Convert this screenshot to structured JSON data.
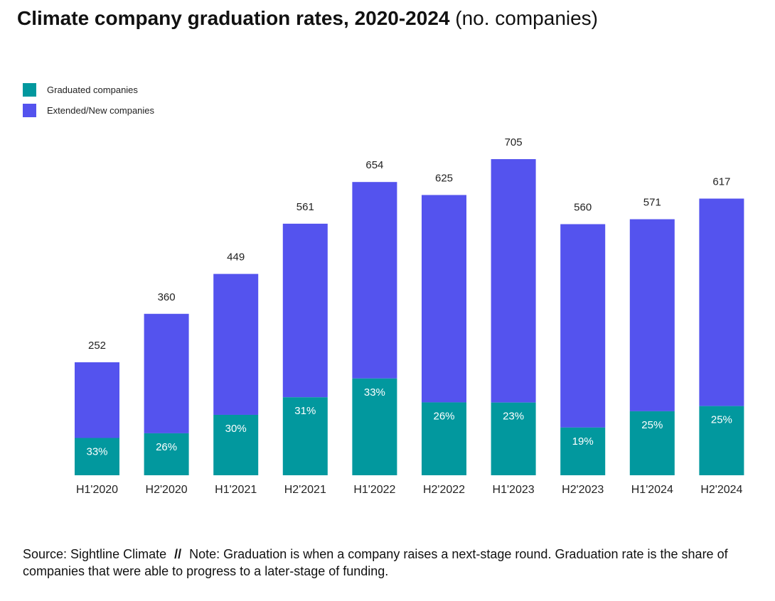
{
  "title": {
    "bold": "Climate company graduation rates, 2020-2024",
    "light": "(no. companies)"
  },
  "legend": [
    {
      "label": "Graduated companies",
      "color": "#02989E"
    },
    {
      "label": "Extended/New companies",
      "color": "#5453EE"
    }
  ],
  "chart_data": {
    "type": "bar",
    "stacked": true,
    "categories": [
      "H1'2020",
      "H2'2020",
      "H1'2021",
      "H2'2021",
      "H1'2022",
      "H2'2022",
      "H1'2023",
      "H2'2023",
      "H1'2024",
      "H2'2024"
    ],
    "totals": [
      252,
      360,
      449,
      561,
      654,
      625,
      705,
      560,
      571,
      617
    ],
    "series": [
      {
        "name": "Graduated companies",
        "color": "#02989E",
        "rate_labels": [
          "33%",
          "26%",
          "30%",
          "31%",
          "33%",
          "26%",
          "23%",
          "19%",
          "25%",
          "25%"
        ]
      },
      {
        "name": "Extended/New companies",
        "color": "#5453EE"
      }
    ],
    "graduated_share": [
      0.33,
      0.26,
      0.3,
      0.31,
      0.33,
      0.26,
      0.23,
      0.19,
      0.25,
      0.25
    ],
    "ylim": [
      0,
      705
    ],
    "grid": false,
    "legend_position": "top-left"
  },
  "footnote": {
    "source": "Source: Sightline Climate",
    "separator": "//",
    "note": "Note: Graduation is when a company raises a next-stage round. Graduation rate is the share of companies that were able to progress to a later-stage of funding."
  }
}
